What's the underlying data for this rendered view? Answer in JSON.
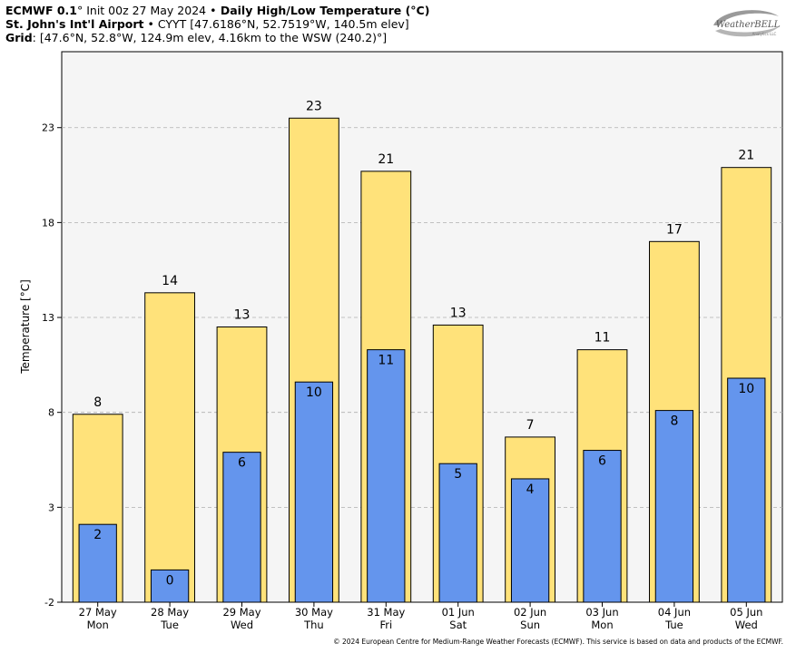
{
  "header": {
    "line1": {
      "model": "ECMWF 0.1",
      "deg": "°",
      "init": " Init 00z 27 May 2024 ",
      "sep": "•",
      "product": " Daily High/Low Temperature (°C)"
    },
    "line2": {
      "station": "St. John's Int'l Airport",
      "details": " • CYYT [47.6186°N, 52.7519°W, 140.5m elev]"
    },
    "line3": {
      "label": "Grid",
      "details": ": [47.6°N, 52.8°W, 124.9m elev, 4.16km to the WSW (240.2)°]"
    }
  },
  "logo": {
    "text": "WeatherBELL",
    "sub": "Analytics LLC"
  },
  "footer": "© 2024 European Centre for Medium-Range Weather Forecasts (ECMWF). This service is based on data and products of the ECMWF.",
  "colors": {
    "high": "#ffe27a",
    "low": "#6495ed",
    "plot_bg": "#f5f5f5",
    "grid": "#b0b0b0"
  },
  "chart_data": {
    "type": "bar",
    "title": "Daily High/Low Temperature (°C)",
    "ylabel": "Temperature [°C]",
    "ylim": [
      -2,
      27
    ],
    "yticks": [
      -2,
      3,
      8,
      13,
      18,
      23
    ],
    "grid": true,
    "categories": [
      {
        "date": "27 May",
        "day": "Mon"
      },
      {
        "date": "28 May",
        "day": "Tue"
      },
      {
        "date": "29 May",
        "day": "Wed"
      },
      {
        "date": "30 May",
        "day": "Thu"
      },
      {
        "date": "31 May",
        "day": "Fri"
      },
      {
        "date": "01 Jun",
        "day": "Sat"
      },
      {
        "date": "02 Jun",
        "day": "Sun"
      },
      {
        "date": "03 Jun",
        "day": "Mon"
      },
      {
        "date": "04 Jun",
        "day": "Tue"
      },
      {
        "date": "05 Jun",
        "day": "Wed"
      }
    ],
    "series": [
      {
        "name": "High",
        "values": [
          7.9,
          14.3,
          12.5,
          23.5,
          20.7,
          12.6,
          6.7,
          11.3,
          17.0,
          20.9
        ],
        "labels": [
          "8",
          "14",
          "13",
          "23",
          "21",
          "13",
          "7",
          "11",
          "17",
          "21"
        ]
      },
      {
        "name": "Low",
        "values": [
          2.1,
          -0.3,
          5.9,
          9.6,
          11.3,
          5.3,
          4.5,
          6.0,
          8.1,
          9.8
        ],
        "labels": [
          "2",
          "0",
          "6",
          "10",
          "11",
          "5",
          "4",
          "6",
          "8",
          "10"
        ]
      }
    ]
  }
}
